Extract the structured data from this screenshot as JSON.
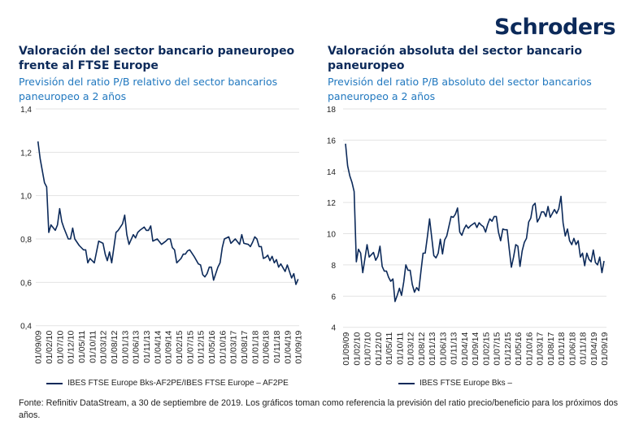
{
  "brand": {
    "logo_text": "Schroders",
    "colors": {
      "navy": "#0c2a5a",
      "blue": "#2178bf",
      "grid": "#e3e3e3"
    }
  },
  "footnote": "Fonte: Refinitiv DataStream, a 30 de septiembre de 2019. Los gráficos toman como referencia la previsión del ratio precio/beneficio para los próximos dos años.",
  "chart_data": [
    {
      "type": "line",
      "title": "Valoración del sector bancario paneuropeo frente al FTSE Europe",
      "subtitle": "Previsión del ratio P/B relativo del sector bancarios paneuropeo a 2 años",
      "xlabel": "",
      "ylabel": "",
      "xlim": [
        "2009-09",
        "2019-09"
      ],
      "ylim": [
        0.4,
        1.4
      ],
      "yticks": [
        "0,4",
        "0,6",
        "0,8",
        "1,0",
        "1,2",
        "1,4"
      ],
      "xticks": [
        "01/09/09",
        "01/02/10",
        "01/07/10",
        "01/12/10",
        "01/05/11",
        "01/10/11",
        "01/03/12",
        "01/08/12",
        "01/01/13",
        "01/06/13",
        "01/11/13",
        "01/04/14",
        "01/09/14",
        "01/02/15",
        "01/07/15",
        "01/12/15",
        "01/05/16",
        "01/10/16",
        "01/03/17",
        "01/08/17",
        "01/01/18",
        "01/06/18",
        "01/11/18",
        "01/04/19",
        "01/09/19"
      ],
      "grid": true,
      "legend_position": "bottom",
      "series": [
        {
          "name": "IBES FTSE Europe Bks-AF2PE/IBES FTSE Europe – AF2PE",
          "color": "#0c2a5a",
          "points": [
            [
              "2009-09",
              1.25
            ],
            [
              "2009-10",
              1.17
            ],
            [
              "2009-12",
              1.06
            ],
            [
              "2010-01",
              1.04
            ],
            [
              "2010-02",
              0.83
            ],
            [
              "2010-03",
              0.865
            ],
            [
              "2010-05",
              0.84
            ],
            [
              "2010-06",
              0.865
            ],
            [
              "2010-07",
              0.94
            ],
            [
              "2010-08",
              0.88
            ],
            [
              "2010-09",
              0.85
            ],
            [
              "2010-11",
              0.8
            ],
            [
              "2010-12",
              0.8
            ],
            [
              "2011-01",
              0.85
            ],
            [
              "2011-02",
              0.8
            ],
            [
              "2011-04",
              0.77
            ],
            [
              "2011-06",
              0.75
            ],
            [
              "2011-07",
              0.75
            ],
            [
              "2011-08",
              0.69
            ],
            [
              "2011-09",
              0.71
            ],
            [
              "2011-11",
              0.69
            ],
            [
              "2012-01",
              0.79
            ],
            [
              "2012-03",
              0.78
            ],
            [
              "2012-04",
              0.73
            ],
            [
              "2012-05",
              0.7
            ],
            [
              "2012-06",
              0.74
            ],
            [
              "2012-07",
              0.69
            ],
            [
              "2012-09",
              0.83
            ],
            [
              "2012-10",
              0.84
            ],
            [
              "2012-12",
              0.87
            ],
            [
              "2013-01",
              0.91
            ],
            [
              "2013-02",
              0.82
            ],
            [
              "2013-03",
              0.775
            ],
            [
              "2013-05",
              0.82
            ],
            [
              "2013-06",
              0.805
            ],
            [
              "2013-07",
              0.83
            ],
            [
              "2013-08",
              0.84
            ],
            [
              "2013-10",
              0.855
            ],
            [
              "2013-11",
              0.84
            ],
            [
              "2013-12",
              0.84
            ],
            [
              "2014-01",
              0.86
            ],
            [
              "2014-02",
              0.79
            ],
            [
              "2014-04",
              0.8
            ],
            [
              "2014-06",
              0.775
            ],
            [
              "2014-08",
              0.79
            ],
            [
              "2014-09",
              0.8
            ],
            [
              "2014-10",
              0.8
            ],
            [
              "2014-11",
              0.76
            ],
            [
              "2014-12",
              0.75
            ],
            [
              "2015-01",
              0.69
            ],
            [
              "2015-03",
              0.71
            ],
            [
              "2015-04",
              0.73
            ],
            [
              "2015-05",
              0.73
            ],
            [
              "2015-06",
              0.745
            ],
            [
              "2015-07",
              0.75
            ],
            [
              "2015-09",
              0.72
            ],
            [
              "2015-11",
              0.685
            ],
            [
              "2015-12",
              0.68
            ],
            [
              "2016-01",
              0.635
            ],
            [
              "2016-02",
              0.625
            ],
            [
              "2016-03",
              0.64
            ],
            [
              "2016-04",
              0.67
            ],
            [
              "2016-05",
              0.67
            ],
            [
              "2016-06",
              0.61
            ],
            [
              "2016-08",
              0.67
            ],
            [
              "2016-09",
              0.69
            ],
            [
              "2016-10",
              0.76
            ],
            [
              "2016-11",
              0.8
            ],
            [
              "2017-01",
              0.81
            ],
            [
              "2017-02",
              0.78
            ],
            [
              "2017-04",
              0.8
            ],
            [
              "2017-06",
              0.775
            ],
            [
              "2017-07",
              0.82
            ],
            [
              "2017-08",
              0.78
            ],
            [
              "2017-10",
              0.775
            ],
            [
              "2017-11",
              0.765
            ],
            [
              "2017-12",
              0.785
            ],
            [
              "2018-01",
              0.81
            ],
            [
              "2018-02",
              0.8
            ],
            [
              "2018-03",
              0.765
            ],
            [
              "2018-04",
              0.765
            ],
            [
              "2018-05",
              0.71
            ],
            [
              "2018-06",
              0.715
            ],
            [
              "2018-07",
              0.725
            ],
            [
              "2018-08",
              0.7
            ],
            [
              "2018-09",
              0.72
            ],
            [
              "2018-10",
              0.69
            ],
            [
              "2018-11",
              0.705
            ],
            [
              "2018-12",
              0.67
            ],
            [
              "2019-01",
              0.685
            ],
            [
              "2019-03",
              0.65
            ],
            [
              "2019-04",
              0.68
            ],
            [
              "2019-06",
              0.62
            ],
            [
              "2019-07",
              0.64
            ],
            [
              "2019-08",
              0.59
            ],
            [
              "2019-09",
              0.615
            ]
          ]
        }
      ]
    },
    {
      "type": "line",
      "title": "Valoración absoluta del sector bancario paneuropeo",
      "subtitle": "Previsión del ratio P/B absoluto del sector bancarios paneuropeo a 2 años",
      "xlabel": "",
      "ylabel": "",
      "xlim": [
        "2009-09",
        "2019-09"
      ],
      "ylim": [
        4,
        18
      ],
      "yticks": [
        "4",
        "6",
        "8",
        "10",
        "12",
        "14",
        "16",
        "18"
      ],
      "xticks": [
        "01/09/09",
        "01/02/10",
        "01/07/10",
        "01/12/10",
        "01/05/11",
        "01/10/11",
        "01/03/12",
        "01/08/12",
        "01/01/13",
        "01/06/13",
        "01/11/13",
        "01/04/14",
        "01/09/14",
        "01/02/15",
        "01/07/15",
        "01/12/15",
        "01/05/16",
        "01/10/16",
        "01/03/17",
        "01/08/17",
        "01/01/18",
        "01/06/18",
        "01/11/18",
        "01/04/19",
        "01/09/19"
      ],
      "grid": true,
      "legend_position": "bottom",
      "series": [
        {
          "name": "IBES FTSE Europe Bks –",
          "color": "#0c2a5a",
          "points": [
            [
              "2009-09",
              15.77
            ],
            [
              "2009-10",
              14.35
            ],
            [
              "2009-11",
              13.7
            ],
            [
              "2009-12",
              13.3
            ],
            [
              "2010-01",
              12.7
            ],
            [
              "2010-02",
              8.2
            ],
            [
              "2010-03",
              9.0
            ],
            [
              "2010-04",
              8.75
            ],
            [
              "2010-05",
              7.5
            ],
            [
              "2010-07",
              9.3
            ],
            [
              "2010-08",
              8.5
            ],
            [
              "2010-10",
              8.8
            ],
            [
              "2010-11",
              8.3
            ],
            [
              "2010-12",
              8.55
            ],
            [
              "2011-01",
              9.2
            ],
            [
              "2011-02",
              7.9
            ],
            [
              "2011-03",
              7.6
            ],
            [
              "2011-04",
              7.6
            ],
            [
              "2011-05",
              7.2
            ],
            [
              "2011-06",
              6.95
            ],
            [
              "2011-07",
              7.1
            ],
            [
              "2011-08",
              5.65
            ],
            [
              "2011-09",
              6.05
            ],
            [
              "2011-10",
              6.5
            ],
            [
              "2011-11",
              6.05
            ],
            [
              "2011-12",
              6.9
            ],
            [
              "2012-01",
              8.0
            ],
            [
              "2012-02",
              7.65
            ],
            [
              "2012-03",
              7.65
            ],
            [
              "2012-04",
              6.75
            ],
            [
              "2012-05",
              6.25
            ],
            [
              "2012-06",
              6.55
            ],
            [
              "2012-07",
              6.35
            ],
            [
              "2012-08",
              7.6
            ],
            [
              "2012-09",
              8.75
            ],
            [
              "2012-10",
              8.75
            ],
            [
              "2012-11",
              9.8
            ],
            [
              "2012-12",
              10.95
            ],
            [
              "2013-02",
              8.6
            ],
            [
              "2013-03",
              8.45
            ],
            [
              "2013-04",
              8.75
            ],
            [
              "2013-05",
              9.65
            ],
            [
              "2013-06",
              8.7
            ],
            [
              "2013-07",
              9.6
            ],
            [
              "2013-08",
              9.85
            ],
            [
              "2013-10",
              11.1
            ],
            [
              "2013-11",
              11.05
            ],
            [
              "2013-12",
              11.25
            ],
            [
              "2014-01",
              11.65
            ],
            [
              "2014-02",
              10.1
            ],
            [
              "2014-03",
              9.9
            ],
            [
              "2014-04",
              10.3
            ],
            [
              "2014-05",
              10.55
            ],
            [
              "2014-06",
              10.35
            ],
            [
              "2014-07",
              10.5
            ],
            [
              "2014-09",
              10.7
            ],
            [
              "2014-10",
              10.4
            ],
            [
              "2014-11",
              10.7
            ],
            [
              "2014-12",
              10.55
            ],
            [
              "2015-01",
              10.45
            ],
            [
              "2015-02",
              10.1
            ],
            [
              "2015-03",
              10.6
            ],
            [
              "2015-04",
              10.95
            ],
            [
              "2015-05",
              10.8
            ],
            [
              "2015-06",
              11.1
            ],
            [
              "2015-07",
              11.1
            ],
            [
              "2015-08",
              10.1
            ],
            [
              "2015-09",
              9.55
            ],
            [
              "2015-10",
              10.3
            ],
            [
              "2015-11",
              10.25
            ],
            [
              "2015-12",
              10.25
            ],
            [
              "2016-01",
              9.0
            ],
            [
              "2016-02",
              7.85
            ],
            [
              "2016-03",
              8.5
            ],
            [
              "2016-04",
              9.3
            ],
            [
              "2016-05",
              9.2
            ],
            [
              "2016-06",
              7.9
            ],
            [
              "2016-07",
              8.9
            ],
            [
              "2016-08",
              9.45
            ],
            [
              "2016-09",
              9.7
            ],
            [
              "2016-10",
              10.75
            ],
            [
              "2016-11",
              11.0
            ],
            [
              "2016-12",
              11.8
            ],
            [
              "2017-01",
              11.95
            ],
            [
              "2017-02",
              10.75
            ],
            [
              "2017-03",
              11.0
            ],
            [
              "2017-04",
              11.4
            ],
            [
              "2017-05",
              11.4
            ],
            [
              "2017-06",
              11.1
            ],
            [
              "2017-07",
              11.75
            ],
            [
              "2017-08",
              11.05
            ],
            [
              "2017-09",
              11.3
            ],
            [
              "2017-10",
              11.55
            ],
            [
              "2017-11",
              11.3
            ],
            [
              "2017-12",
              11.6
            ],
            [
              "2018-01",
              12.4
            ],
            [
              "2018-02",
              10.7
            ],
            [
              "2018-03",
              9.85
            ],
            [
              "2018-04",
              10.3
            ],
            [
              "2018-05",
              9.55
            ],
            [
              "2018-06",
              9.3
            ],
            [
              "2018-07",
              9.7
            ],
            [
              "2018-08",
              9.3
            ],
            [
              "2018-09",
              9.55
            ],
            [
              "2018-10",
              8.5
            ],
            [
              "2018-11",
              8.75
            ],
            [
              "2018-12",
              7.95
            ],
            [
              "2019-01",
              8.75
            ],
            [
              "2019-02",
              8.35
            ],
            [
              "2019-03",
              8.2
            ],
            [
              "2019-04",
              8.95
            ],
            [
              "2019-05",
              8.15
            ],
            [
              "2019-06",
              8.0
            ],
            [
              "2019-07",
              8.5
            ],
            [
              "2019-08",
              7.5
            ],
            [
              "2019-09",
              8.25
            ]
          ]
        }
      ]
    }
  ]
}
